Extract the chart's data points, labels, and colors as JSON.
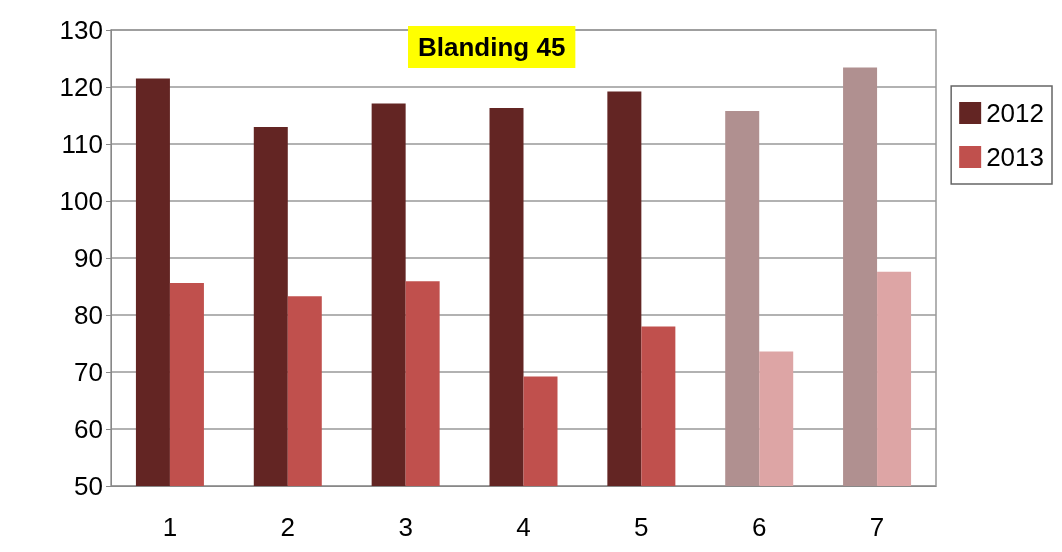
{
  "chart_data": {
    "type": "bar",
    "title": "Blanding 45",
    "categories": [
      "1",
      "2",
      "3",
      "4",
      "5",
      "6",
      "7"
    ],
    "series": [
      {
        "name": "2012",
        "color": "#632523",
        "colors": [
          "#632523",
          "#632523",
          "#632523",
          "#632523",
          "#632523",
          "#b09090",
          "#b09090"
        ],
        "values": [
          121.5,
          113,
          117.1,
          116.3,
          119.2,
          115.8,
          123.4
        ]
      },
      {
        "name": "2013",
        "color": "#c0504d",
        "colors": [
          "#c0504d",
          "#c0504d",
          "#c0504d",
          "#c0504d",
          "#c0504d",
          "#dda5a5",
          "#dda5a5"
        ],
        "values": [
          85.6,
          83.3,
          85.9,
          69.2,
          78,
          73.6,
          87.6
        ]
      }
    ],
    "ylim": [
      50,
      130
    ],
    "yticks": [
      50,
      60,
      70,
      80,
      90,
      100,
      110,
      120,
      130
    ],
    "grid": "y",
    "legend": "right"
  }
}
